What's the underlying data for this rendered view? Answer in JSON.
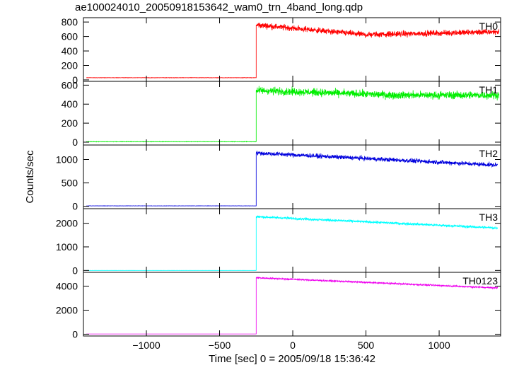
{
  "title": "ae100024010_20050918153642_wam0_trn_4band_long.qdp",
  "ylabel": "Counts/sec",
  "xlabel": "Time [sec] 0 = 2005/09/18 15:36:42",
  "chart_data": {
    "type": "line",
    "shared_x_axis": true,
    "xlim": [
      -1430,
      1420
    ],
    "xticks": [
      -1000,
      -500,
      0,
      500,
      1000
    ],
    "xtick_labels": [
      "−1000",
      "−500",
      "0",
      "500",
      "1000"
    ],
    "xlabel": "Time [sec] 0 = 2005/09/18 15:36:42",
    "ylabel": "Counts/sec",
    "grid": false,
    "panels": [
      {
        "name": "TH0",
        "color": "#ff0000",
        "ylim": [
          -20,
          860
        ],
        "yticks": [
          0,
          200,
          400,
          600,
          800
        ],
        "baseline": 30,
        "onset": -250,
        "start_level": 760,
        "min_level": 625,
        "min_at": 500,
        "end_level": 665,
        "noise": 30
      },
      {
        "name": "TH1",
        "color": "#00ee00",
        "ylim": [
          -30,
          640
        ],
        "yticks": [
          0,
          200,
          400,
          600
        ],
        "baseline": 5,
        "onset": -250,
        "start_level": 545,
        "min_level": 495,
        "min_at": 700,
        "end_level": 495,
        "noise": 30
      },
      {
        "name": "TH2",
        "color": "#0000dd",
        "ylim": [
          -50,
          1310
        ],
        "yticks": [
          0,
          500,
          1000
        ],
        "baseline": 10,
        "onset": -250,
        "start_level": 1140,
        "min_level": 880,
        "min_at": 1400,
        "end_level": 880,
        "noise": 35
      },
      {
        "name": "TH3",
        "color": "#00ffff",
        "ylim": [
          -80,
          2620
        ],
        "yticks": [
          0,
          1000,
          2000
        ],
        "baseline": 0,
        "onset": -250,
        "start_level": 2280,
        "min_level": 1800,
        "min_at": 1400,
        "end_level": 1800,
        "noise": 40
      },
      {
        "name": "TH0123",
        "color": "#ee00ee",
        "ylim": [
          -150,
          5150
        ],
        "yticks": [
          0,
          2000,
          4000
        ],
        "baseline": 20,
        "onset": -250,
        "start_level": 4700,
        "min_level": 3850,
        "min_at": 1400,
        "end_level": 3850,
        "noise": 50
      }
    ]
  }
}
